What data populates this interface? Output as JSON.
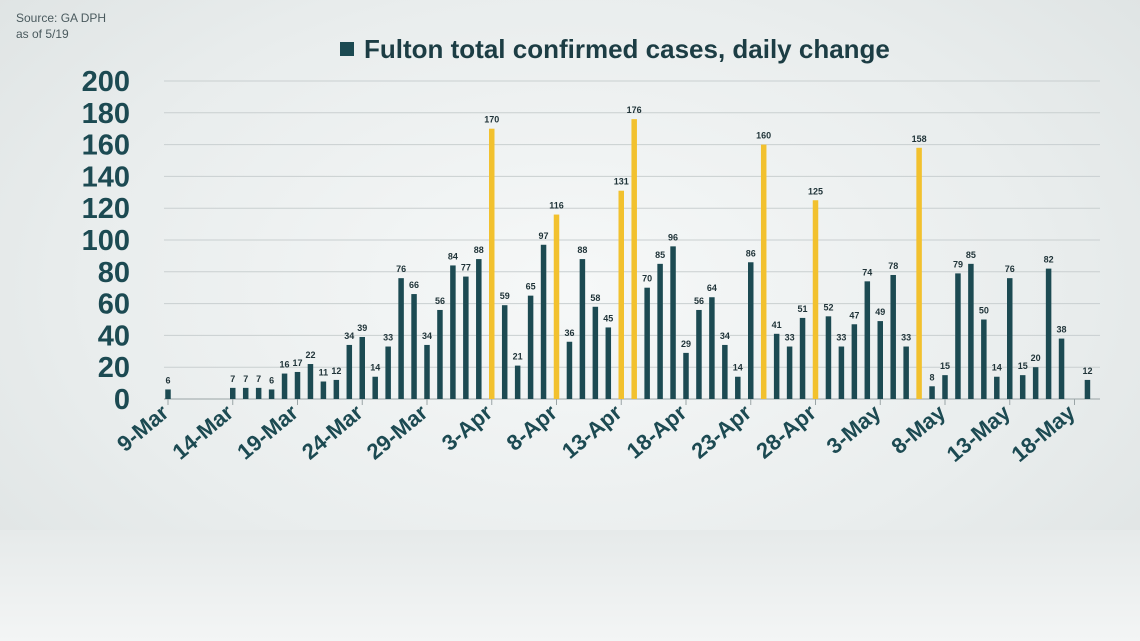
{
  "source": {
    "line1": "Source: GA DPH",
    "line2": "as of 5/19"
  },
  "chart_data": {
    "type": "bar",
    "title": "Fulton total confirmed cases, daily change",
    "series_name": "Fulton total confirmed cases, daily change",
    "ylim": [
      0,
      200
    ],
    "yticks": [
      0,
      20,
      40,
      60,
      80,
      100,
      120,
      140,
      160,
      180,
      200
    ],
    "xticks": [
      "9-Mar",
      "14-Mar",
      "19-Mar",
      "24-Mar",
      "29-Mar",
      "3-Apr",
      "8-Apr",
      "13-Apr",
      "18-Apr",
      "23-Apr",
      "28-Apr",
      "3-May",
      "8-May",
      "13-May",
      "18-May"
    ],
    "grid": true,
    "legend": "top",
    "colors": {
      "normal": "#1c4a52",
      "highlight": "#f2c12e"
    },
    "values": [
      6,
      null,
      null,
      null,
      null,
      7,
      7,
      7,
      6,
      16,
      17,
      22,
      11,
      12,
      34,
      39,
      14,
      33,
      76,
      66,
      34,
      56,
      84,
      77,
      88,
      170,
      59,
      21,
      65,
      97,
      116,
      36,
      88,
      58,
      45,
      131,
      176,
      70,
      85,
      96,
      29,
      56,
      64,
      34,
      14,
      86,
      160,
      41,
      33,
      51,
      125,
      52,
      33,
      47,
      74,
      49,
      78,
      33,
      158,
      8,
      15,
      79,
      85,
      50,
      14,
      76,
      15,
      20,
      82,
      38,
      null,
      12
    ],
    "highlighted_indices": [
      25,
      30,
      35,
      36,
      46,
      50,
      58
    ]
  }
}
